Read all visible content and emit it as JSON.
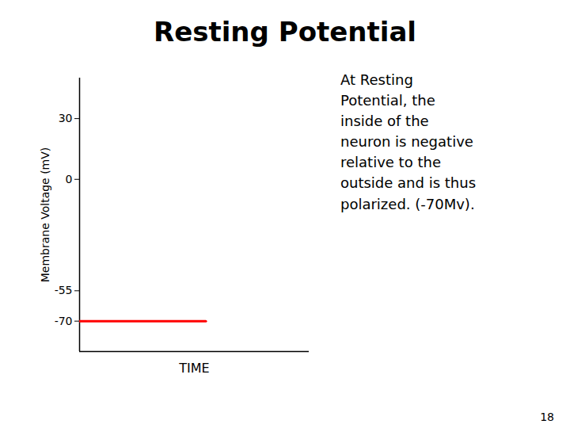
{
  "chart_data": {
    "type": "line",
    "title": "Resting Potential",
    "x_label": "TIME",
    "y_label": "Membrane Voltage (mV)",
    "x": [
      0,
      5.5
    ],
    "values": [
      -70,
      -70
    ],
    "color": "#ff0000",
    "xlim": [
      0,
      10
    ],
    "ylim": [
      -85,
      50
    ],
    "xticks": [],
    "yticks": [
      30,
      0,
      -55,
      -70
    ],
    "tick_labels": "y",
    "grid": false,
    "annotation": "At Resting\nPotential, the\ninside of the\nneuron is negative\nrelative to the\noutside and is thus\npolarized. (-70Mv).",
    "page_number": "18"
  }
}
